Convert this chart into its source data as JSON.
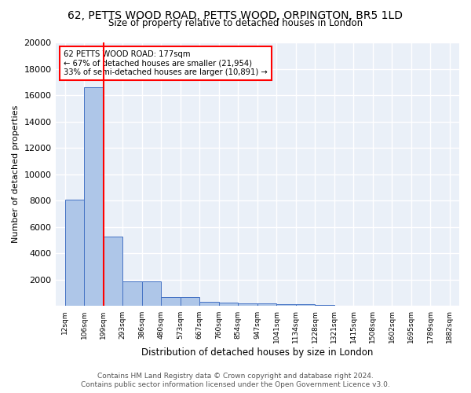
{
  "title_line1": "62, PETTS WOOD ROAD, PETTS WOOD, ORPINGTON, BR5 1LD",
  "title_line2": "Size of property relative to detached houses in London",
  "xlabel": "Distribution of detached houses by size in London",
  "ylabel": "Number of detached properties",
  "bar_values": [
    8100,
    16600,
    5300,
    1850,
    1850,
    700,
    700,
    300,
    250,
    200,
    200,
    150,
    150,
    100,
    50,
    50,
    30,
    20,
    20,
    10
  ],
  "categories": [
    "12sqm",
    "106sqm",
    "199sqm",
    "293sqm",
    "386sqm",
    "480sqm",
    "573sqm",
    "667sqm",
    "760sqm",
    "854sqm",
    "947sqm",
    "1041sqm",
    "1134sqm",
    "1228sqm",
    "1321sqm",
    "1415sqm",
    "1508sqm",
    "1602sqm",
    "1695sqm",
    "1789sqm",
    "1882sqm"
  ],
  "bar_color": "#aec6e8",
  "bar_edge_color": "#4472c4",
  "bg_color": "#eaf0f8",
  "grid_color": "#ffffff",
  "annotation_text": "62 PETTS WOOD ROAD: 177sqm\n← 67% of detached houses are smaller (21,954)\n33% of semi-detached houses are larger (10,891) →",
  "red_line_x": 2.0,
  "footer_line1": "Contains HM Land Registry data © Crown copyright and database right 2024.",
  "footer_line2": "Contains public sector information licensed under the Open Government Licence v3.0.",
  "ylim": [
    0,
    20000
  ],
  "yticks": [
    0,
    2000,
    4000,
    6000,
    8000,
    10000,
    12000,
    14000,
    16000,
    18000,
    20000
  ]
}
